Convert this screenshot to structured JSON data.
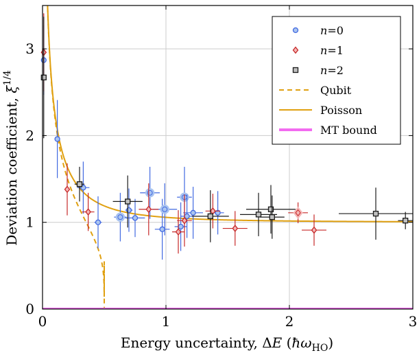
{
  "chart_data": {
    "type": "scatter",
    "xlabel": "Energy uncertainty, ΔE (ħω_HO)",
    "ylabel": "Deviation coefficient, ξ^{1/4}",
    "xlim": [
      0,
      3
    ],
    "ylim": [
      0,
      3.5
    ],
    "xticks": [
      "0",
      "1",
      "2",
      "3"
    ],
    "yticks": [
      "0",
      "1",
      "2",
      "3"
    ],
    "grid": true,
    "legend_position": "top-right",
    "series": [
      {
        "name": "n=0",
        "marker": "circle",
        "color": "#4169e1",
        "fill": "#aac4f0",
        "points": [
          {
            "x": 0.01,
            "y": 2.87,
            "xerr": 0.0,
            "yerr": 0.4
          },
          {
            "x": 0.12,
            "y": 1.96,
            "xerr": 0.0,
            "yerr": 0.45
          },
          {
            "x": 0.33,
            "y": 1.4,
            "xerr": 0.05,
            "yerr": 0.3
          },
          {
            "x": 0.45,
            "y": 1.0,
            "xerr": 0.03,
            "yerr": 0.3
          },
          {
            "x": 0.63,
            "y": 1.06,
            "xerr": 0.05,
            "yerr": 0.28,
            "bold": true
          },
          {
            "x": 0.7,
            "y": 1.14,
            "xerr": 0.03,
            "yerr": 0.25
          },
          {
            "x": 0.75,
            "y": 1.05,
            "xerr": 0.08,
            "yerr": 0.22
          },
          {
            "x": 0.87,
            "y": 1.34,
            "xerr": 0.08,
            "yerr": 0.3,
            "bold": true
          },
          {
            "x": 0.97,
            "y": 0.92,
            "xerr": 0.06,
            "yerr": 0.35
          },
          {
            "x": 0.99,
            "y": 1.15,
            "xerr": 0.1,
            "yerr": 0.3,
            "bold": true
          },
          {
            "x": 1.12,
            "y": 0.95,
            "xerr": 0.05,
            "yerr": 0.28
          },
          {
            "x": 1.15,
            "y": 1.29,
            "xerr": 0.06,
            "yerr": 0.35,
            "bold": true
          },
          {
            "x": 1.17,
            "y": 1.07,
            "xerr": 0.05,
            "yerr": 0.25
          },
          {
            "x": 1.22,
            "y": 1.11,
            "xerr": 0.08,
            "yerr": 0.3
          },
          {
            "x": 1.42,
            "y": 1.11,
            "xerr": 0.05,
            "yerr": 0.25
          }
        ]
      },
      {
        "name": "n=1",
        "marker": "diamond",
        "color": "#c62828",
        "fill": "#f4b6b6",
        "points": [
          {
            "x": 0.01,
            "y": 2.96,
            "xerr": 0.0,
            "yerr": 0.45
          },
          {
            "x": 0.2,
            "y": 1.38,
            "xerr": 0.0,
            "yerr": 0.3
          },
          {
            "x": 0.37,
            "y": 1.12,
            "xerr": 0.05,
            "yerr": 0.22
          },
          {
            "x": 0.86,
            "y": 1.15,
            "xerr": 0.08,
            "yerr": 0.3
          },
          {
            "x": 1.1,
            "y": 0.89,
            "xerr": 0.05,
            "yerr": 0.25
          },
          {
            "x": 1.15,
            "y": 1.02,
            "xerr": 0.06,
            "yerr": 0.3
          },
          {
            "x": 1.38,
            "y": 1.13,
            "xerr": 0.06,
            "yerr": 0.2
          },
          {
            "x": 1.56,
            "y": 0.93,
            "xerr": 0.1,
            "yerr": 0.2
          },
          {
            "x": 2.07,
            "y": 1.11,
            "xerr": 0.08,
            "yerr": 0.12,
            "bold": true
          },
          {
            "x": 2.2,
            "y": 0.91,
            "xerr": 0.1,
            "yerr": 0.18
          }
        ]
      },
      {
        "name": "n=2",
        "marker": "square",
        "color": "#1a1a1a",
        "fill": "#bfbfbf",
        "points": [
          {
            "x": 0.01,
            "y": 2.67,
            "xerr": 0.0,
            "yerr": 0.7
          },
          {
            "x": 0.3,
            "y": 1.44,
            "xerr": 0.04,
            "yerr": 0.2
          },
          {
            "x": 0.69,
            "y": 1.24,
            "xerr": 0.12,
            "yerr": 0.3
          },
          {
            "x": 1.36,
            "y": 1.07,
            "xerr": 0.15,
            "yerr": 0.3
          },
          {
            "x": 1.75,
            "y": 1.09,
            "xerr": 0.15,
            "yerr": 0.25
          },
          {
            "x": 1.85,
            "y": 1.15,
            "xerr": 0.2,
            "yerr": 0.28
          },
          {
            "x": 1.86,
            "y": 1.06,
            "xerr": 0.1,
            "yerr": 0.25
          },
          {
            "x": 2.7,
            "y": 1.1,
            "xerr": 0.3,
            "yerr": 0.3
          },
          {
            "x": 2.94,
            "y": 1.02,
            "xerr": 0.06,
            "yerr": 0.1
          }
        ]
      }
    ],
    "curves": [
      {
        "name": "Qubit",
        "style": "dashed",
        "color": "#e0a010"
      },
      {
        "name": "Poisson",
        "style": "solid",
        "color": "#e0a010"
      },
      {
        "name": "MT bound",
        "style": "solid-thick",
        "color": "#f26bf0",
        "y": 0
      }
    ],
    "legend": [
      {
        "label_math": "n",
        "label_rest": "=0",
        "marker": "circle",
        "color": "#4169e1",
        "fill": "#aac4f0"
      },
      {
        "label_math": "n",
        "label_rest": "=1",
        "marker": "diamond",
        "color": "#c62828",
        "fill": "#f4b6b6"
      },
      {
        "label_math": "n",
        "label_rest": "=2",
        "marker": "square",
        "color": "#1a1a1a",
        "fill": "#bfbfbf"
      },
      {
        "label_math": "",
        "label_rest": "Qubit",
        "line": "dashed",
        "color": "#e0a010"
      },
      {
        "label_math": "",
        "label_rest": "Poisson",
        "line": "solid",
        "color": "#e0a010"
      },
      {
        "label_math": "",
        "label_rest": "MT bound",
        "line": "thick",
        "color": "#f26bf0"
      }
    ]
  }
}
